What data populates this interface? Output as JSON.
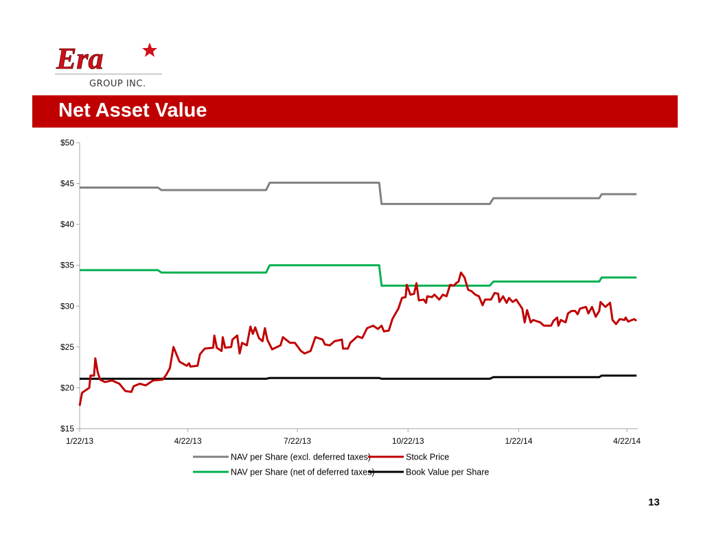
{
  "logo": {
    "brand": "Era",
    "subtitle": "GROUP INC."
  },
  "slide": {
    "title": "Net Asset Value",
    "page_number": "13"
  },
  "colors": {
    "title_bar": "#C00000",
    "nav_excl": "#808080",
    "stock": "#C00000",
    "nav_net": "#00B050",
    "book": "#000000"
  },
  "chart_data": {
    "type": "line",
    "title": "",
    "xlabel": "",
    "ylabel": "",
    "x_units": "days since 1/22/13",
    "xlim": [
      0,
      463
    ],
    "ylim": [
      15,
      50
    ],
    "y_ticks": [
      15,
      20,
      25,
      30,
      35,
      40,
      45,
      50
    ],
    "y_tick_labels": [
      "$15",
      "$20",
      "$25",
      "$30",
      "$35",
      "$40",
      "$45",
      "$50"
    ],
    "x_ticks": [
      0,
      90,
      181,
      273,
      365,
      455
    ],
    "x_tick_labels": [
      "1/22/13",
      "4/22/13",
      "7/22/13",
      "10/22/13",
      "1/22/14",
      "4/22/14"
    ],
    "grid": false,
    "legend_position": "bottom",
    "series": [
      {
        "name": "NAV per Share (excl. deferred taxes)",
        "color": "#808080",
        "points": [
          [
            0,
            44.5
          ],
          [
            65,
            44.5
          ],
          [
            68,
            44.2
          ],
          [
            155,
            44.2
          ],
          [
            158,
            45.1
          ],
          [
            249,
            45.1
          ],
          [
            251,
            42.5
          ],
          [
            341,
            42.5
          ],
          [
            344,
            43.2
          ],
          [
            432,
            43.2
          ],
          [
            434,
            43.7
          ],
          [
            463,
            43.7
          ]
        ]
      },
      {
        "name": "Stock Price",
        "color": "#C00000",
        "points": [
          [
            0,
            17.8
          ],
          [
            2,
            19.4
          ],
          [
            6,
            19.8
          ],
          [
            8,
            20.0
          ],
          [
            9,
            21.5
          ],
          [
            12,
            21.5
          ],
          [
            13,
            23.6
          ],
          [
            15,
            21.9
          ],
          [
            17,
            21.0
          ],
          [
            21,
            20.7
          ],
          [
            27,
            20.9
          ],
          [
            33,
            20.5
          ],
          [
            38,
            19.6
          ],
          [
            43,
            19.5
          ],
          [
            45,
            20.2
          ],
          [
            50,
            20.5
          ],
          [
            55,
            20.3
          ],
          [
            61,
            20.9
          ],
          [
            69,
            21.0
          ],
          [
            72,
            21.6
          ],
          [
            75,
            22.4
          ],
          [
            78,
            25.0
          ],
          [
            83,
            23.2
          ],
          [
            89,
            22.7
          ],
          [
            91,
            23.0
          ],
          [
            92,
            22.6
          ],
          [
            98,
            22.7
          ],
          [
            100,
            24.1
          ],
          [
            104,
            24.8
          ],
          [
            111,
            24.9
          ],
          [
            112,
            26.4
          ],
          [
            114,
            24.9
          ],
          [
            118,
            24.5
          ],
          [
            119,
            26.2
          ],
          [
            121,
            24.9
          ],
          [
            126,
            25.0
          ],
          [
            127,
            25.9
          ],
          [
            131,
            26.4
          ],
          [
            133,
            24.2
          ],
          [
            135,
            25.5
          ],
          [
            139,
            25.2
          ],
          [
            142,
            27.5
          ],
          [
            144,
            26.6
          ],
          [
            146,
            27.4
          ],
          [
            149,
            26.1
          ],
          [
            152,
            25.7
          ],
          [
            154,
            27.3
          ],
          [
            156,
            25.9
          ],
          [
            160,
            24.7
          ],
          [
            167,
            25.2
          ],
          [
            169,
            26.2
          ],
          [
            175,
            25.5
          ],
          [
            179,
            25.5
          ],
          [
            184,
            24.5
          ],
          [
            187,
            24.2
          ],
          [
            192,
            24.5
          ],
          [
            196,
            26.2
          ],
          [
            202,
            25.9
          ],
          [
            204,
            25.3
          ],
          [
            208,
            25.2
          ],
          [
            212,
            25.7
          ],
          [
            218,
            25.9
          ],
          [
            219,
            24.8
          ],
          [
            223,
            24.8
          ],
          [
            225,
            25.5
          ],
          [
            231,
            26.3
          ],
          [
            235,
            26.1
          ],
          [
            239,
            27.3
          ],
          [
            244,
            27.6
          ],
          [
            248,
            27.2
          ],
          [
            251,
            27.6
          ],
          [
            253,
            26.9
          ],
          [
            257,
            27.0
          ],
          [
            260,
            28.4
          ],
          [
            265,
            29.7
          ],
          [
            268,
            31.0
          ],
          [
            271,
            31.1
          ],
          [
            272,
            32.6
          ],
          [
            275,
            31.4
          ],
          [
            278,
            31.5
          ],
          [
            280,
            32.8
          ],
          [
            282,
            30.7
          ],
          [
            286,
            30.8
          ],
          [
            288,
            30.4
          ],
          [
            289,
            31.2
          ],
          [
            293,
            31.1
          ],
          [
            295,
            31.4
          ],
          [
            299,
            30.8
          ],
          [
            302,
            31.4
          ],
          [
            305,
            31.2
          ],
          [
            308,
            32.6
          ],
          [
            311,
            32.5
          ],
          [
            313,
            32.8
          ],
          [
            315,
            33.0
          ],
          [
            317,
            34.1
          ],
          [
            320,
            33.5
          ],
          [
            323,
            32.0
          ],
          [
            326,
            31.8
          ],
          [
            329,
            31.4
          ],
          [
            332,
            31.2
          ],
          [
            335,
            30.1
          ],
          [
            337,
            30.8
          ],
          [
            342,
            30.8
          ],
          [
            345,
            31.6
          ],
          [
            348,
            31.5
          ],
          [
            349,
            30.5
          ],
          [
            352,
            31.2
          ],
          [
            355,
            30.4
          ],
          [
            357,
            31.0
          ],
          [
            360,
            30.5
          ],
          [
            363,
            30.8
          ],
          [
            368,
            29.7
          ],
          [
            370,
            28.0
          ],
          [
            372,
            29.5
          ],
          [
            375,
            28.0
          ],
          [
            377,
            28.3
          ],
          [
            383,
            28.0
          ],
          [
            386,
            27.6
          ],
          [
            392,
            27.6
          ],
          [
            394,
            28.2
          ],
          [
            397,
            28.6
          ],
          [
            398,
            27.6
          ],
          [
            400,
            28.3
          ],
          [
            404,
            28.0
          ],
          [
            406,
            29.1
          ],
          [
            409,
            29.4
          ],
          [
            412,
            29.4
          ],
          [
            414,
            29.0
          ],
          [
            416,
            29.7
          ],
          [
            421,
            29.9
          ],
          [
            423,
            29.1
          ],
          [
            426,
            29.9
          ],
          [
            429,
            28.7
          ],
          [
            432,
            29.4
          ],
          [
            433,
            30.5
          ],
          [
            437,
            29.9
          ],
          [
            441,
            30.4
          ],
          [
            443,
            28.3
          ],
          [
            446,
            27.8
          ],
          [
            449,
            28.4
          ],
          [
            453,
            28.3
          ],
          [
            454,
            28.6
          ],
          [
            456,
            28.1
          ],
          [
            461,
            28.4
          ],
          [
            463,
            28.2
          ]
        ]
      },
      {
        "name": "NAV per Share (net of deferred taxes)",
        "color": "#00B050",
        "points": [
          [
            0,
            34.4
          ],
          [
            65,
            34.4
          ],
          [
            68,
            34.1
          ],
          [
            155,
            34.1
          ],
          [
            158,
            35.0
          ],
          [
            249,
            35.0
          ],
          [
            251,
            32.5
          ],
          [
            341,
            32.5
          ],
          [
            344,
            33.0
          ],
          [
            432,
            33.0
          ],
          [
            434,
            33.5
          ],
          [
            463,
            33.5
          ]
        ]
      },
      {
        "name": "Book Value per Share",
        "color": "#000000",
        "points": [
          [
            0,
            21.1
          ],
          [
            155,
            21.1
          ],
          [
            158,
            21.2
          ],
          [
            249,
            21.2
          ],
          [
            251,
            21.1
          ],
          [
            341,
            21.1
          ],
          [
            344,
            21.3
          ],
          [
            432,
            21.3
          ],
          [
            434,
            21.5
          ],
          [
            463,
            21.5
          ]
        ]
      }
    ]
  }
}
